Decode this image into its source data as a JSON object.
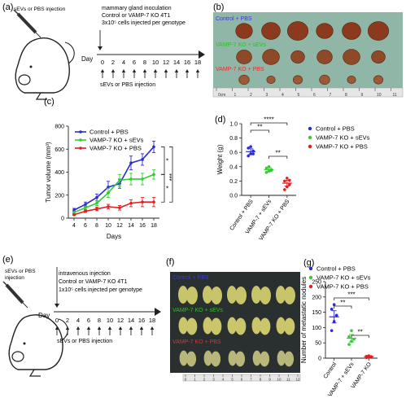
{
  "panels": {
    "a": {
      "label": "(a)",
      "injection_label": "sEVs or PBS injection",
      "text_lines": [
        "mammary gland inoculation",
        "Control or VAMP-7 KO 4T1",
        "3x10⁵ cells injected per genotype"
      ],
      "day_label": "Day",
      "days": [
        "0",
        "2",
        "4",
        "6",
        "8",
        "10",
        "12",
        "14",
        "16",
        "18"
      ],
      "bottom_label": "sEVs or PBS injection"
    },
    "b": {
      "label": "(b)",
      "rows": [
        "Control + PBS",
        "VAMP-7 KO + sEVs",
        "VAMP-7 KO + PBS"
      ],
      "row_colors": [
        "#3b3bd6",
        "#33cc33",
        "#e23030"
      ],
      "ruler_ticks": [
        "0cm",
        "1",
        "2",
        "3",
        "4",
        "5",
        "6",
        "7",
        "8",
        "9",
        "10",
        "11"
      ]
    },
    "e": {
      "label": "(e)",
      "injection_label_lines": [
        "sEVs or PBS",
        "injection"
      ],
      "text_lines": [
        "intravenous injection",
        "Control or VAMP-7 KO 4T1",
        "1x10⁵ cells injected per genotype"
      ],
      "day_label": "Day",
      "days": [
        "0",
        "2",
        "4",
        "6",
        "8",
        "10",
        "12",
        "14",
        "16",
        "18"
      ],
      "bottom_label": "sEVs or PBS injection"
    },
    "f": {
      "label": "(f)",
      "rows": [
        "Control + PBS",
        "VAMP-7 KO + sEVs",
        "VAMP-7 KO + PBS"
      ],
      "row_colors": [
        "#3b3bd6",
        "#33cc33",
        "#e23030"
      ],
      "ruler_ticks": [
        "0",
        "1",
        "2",
        "3",
        "4",
        "5",
        "6",
        "7",
        "8",
        "9",
        "10",
        "11",
        "12"
      ]
    }
  },
  "colors": {
    "control": "#2b2bd0",
    "ko_sevs": "#33cc33",
    "ko_pbs": "#e02020"
  },
  "chart_data": [
    {
      "panel": "(c)",
      "type": "line",
      "xlabel": "Days",
      "ylabel": "Tumor volume (mm³)",
      "x": [
        4,
        6,
        8,
        10,
        12,
        14,
        16,
        18
      ],
      "xlim": [
        3,
        19
      ],
      "ylim": [
        0,
        800
      ],
      "yticks": [
        0,
        200,
        400,
        600,
        800
      ],
      "series": [
        {
          "name": "Control + PBS",
          "values": [
            70,
            120,
            180,
            270,
            300,
            480,
            510,
            620
          ],
          "err": [
            15,
            20,
            30,
            50,
            40,
            60,
            50,
            50
          ]
        },
        {
          "name": "VAMP-7 KO + sEVs",
          "values": [
            50,
            90,
            130,
            220,
            330,
            340,
            340,
            380
          ],
          "err": [
            10,
            15,
            20,
            40,
            50,
            50,
            50,
            40
          ]
        },
        {
          "name": "VAMP-7 KO + PBS",
          "values": [
            30,
            60,
            80,
            100,
            90,
            130,
            140,
            140
          ],
          "err": [
            5,
            10,
            15,
            20,
            20,
            30,
            40,
            40
          ]
        }
      ],
      "significance": [
        "*",
        "*",
        "***"
      ]
    },
    {
      "panel": "(d)",
      "type": "scatter",
      "ylabel": "Weight (g)",
      "categories": [
        "Control + PBS",
        "VAMP-7 + sEVs",
        "VAMP-7 KO + PBS"
      ],
      "ylim": [
        0,
        1.0
      ],
      "yticks": [
        0.0,
        0.2,
        0.4,
        0.6,
        0.8,
        1.0
      ],
      "means": [
        0.61,
        0.36,
        0.17
      ],
      "sems": [
        0.04,
        0.03,
        0.04
      ],
      "points": [
        [
          0.55,
          0.58,
          0.62,
          0.66,
          0.68,
          0.58
        ],
        [
          0.32,
          0.34,
          0.36,
          0.38,
          0.4,
          0.35
        ],
        [
          0.08,
          0.12,
          0.15,
          0.2,
          0.24,
          0.21
        ]
      ],
      "legend": [
        "Control + PBS",
        "VAMP-7 KO + sEVs",
        "VAMP-7 KO + PBS"
      ],
      "significance": [
        "**",
        "****",
        "**"
      ]
    },
    {
      "panel": "(g)",
      "type": "scatter",
      "ylabel": "Number of metastatic nodules",
      "categories": [
        "Control",
        "VAMP-7 + sEVs",
        "VAMP-7 KO"
      ],
      "ylim": [
        0,
        250
      ],
      "yticks": [
        0,
        50,
        100,
        150,
        200,
        250
      ],
      "means": [
        135,
        65,
        5
      ],
      "sems": [
        20,
        12,
        3
      ],
      "points": [
        [
          90,
          120,
          140,
          160,
          175
        ],
        [
          45,
          55,
          62,
          70,
          90
        ],
        [
          2,
          3,
          5,
          6,
          8
        ]
      ],
      "legend": [
        "Control + PBS",
        "VAMP-7 KO + sEVs",
        "VAMP-7 KO + PBS"
      ],
      "significance": [
        "**",
        "***",
        "**"
      ]
    }
  ]
}
